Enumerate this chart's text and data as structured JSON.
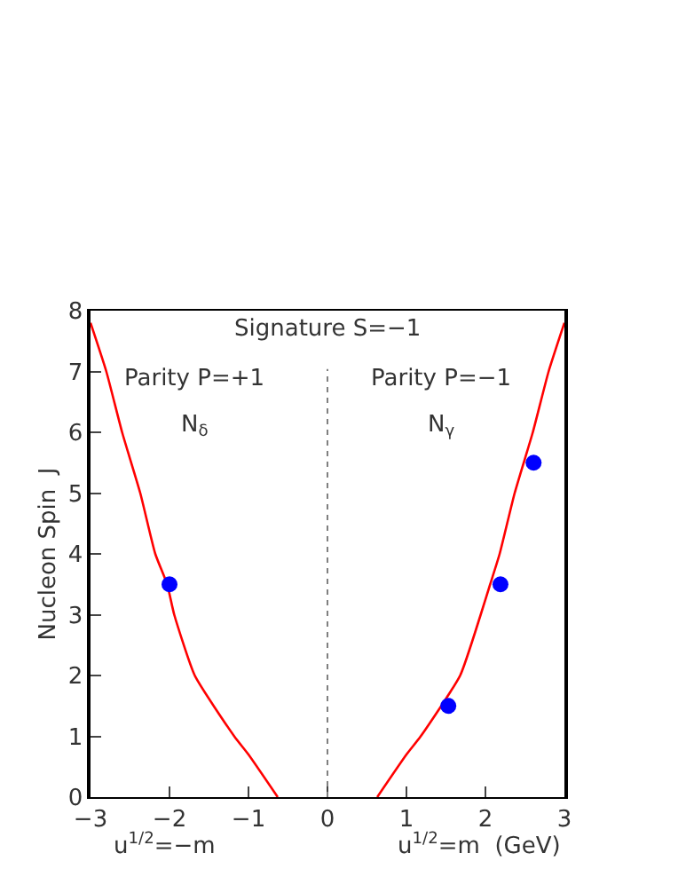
{
  "chart_data": {
    "type": "line",
    "xlabel": "u$^{1/2}$=m  (GeV)",
    "ylabel": "Nucleon Spin  J",
    "xlim": [
      -3,
      3
    ],
    "ylim": [
      0,
      8
    ],
    "xticks": [
      -3,
      -2,
      -1,
      0,
      1,
      2,
      3
    ],
    "yticks": [
      0,
      1,
      2,
      3,
      4,
      5,
      6,
      7,
      8
    ],
    "grid": false,
    "series": [
      {
        "color": "#ff0000",
        "x": [
          -3,
          -2.8,
          -2.6,
          -2.37,
          -2.18,
          -2.03,
          -1.94,
          -1.68,
          -1.18,
          -1,
          -0.63
        ],
        "values": [
          7.8,
          7,
          6,
          5,
          4,
          3.5,
          3,
          2,
          1,
          0.7,
          0
        ],
        "marker": "none",
        "line_style": "solid"
      },
      {
        "color": "#ff0000",
        "x": [
          0.63,
          1,
          1.18,
          1.68,
          1.94,
          2.06,
          2.18,
          2.37,
          2.6,
          2.8,
          3
        ],
        "values": [
          0,
          0.7,
          1,
          2,
          3,
          3.5,
          4,
          5,
          6,
          7,
          7.8
        ],
        "marker": "none",
        "line_style": "solid"
      },
      {
        "type": "scatter",
        "color": "#0000ff",
        "marker": "circle",
        "x": [
          -2,
          1.53,
          2.19,
          2.61
        ],
        "values": [
          3.5,
          1.5,
          3.5,
          5.5
        ]
      }
    ],
    "ref_lines": [
      {
        "axis": "x",
        "value": 0,
        "color": "#808080",
        "line_style": "dotted"
      }
    ],
    "annotations": [
      "Signature S=−1",
      "Parity P=+1",
      "N$_{δ}$",
      "Parity P=−1",
      "N$_{γ}$",
      "u$^{1/2}$=−m"
    ]
  }
}
